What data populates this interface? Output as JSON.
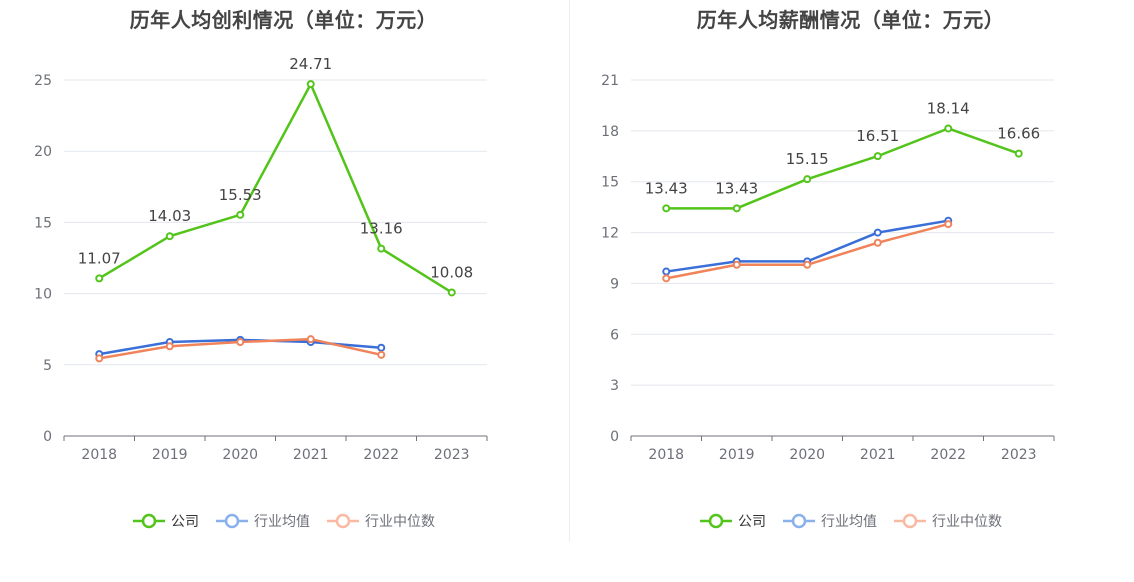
{
  "chart_data": [
    {
      "type": "line",
      "title": "历年人均创利情况（单位：万元）",
      "categories": [
        "2018",
        "2019",
        "2020",
        "2021",
        "2022",
        "2023"
      ],
      "ylim": [
        0,
        25
      ],
      "yticks": [
        "0",
        "5",
        "10",
        "15",
        "20",
        "25"
      ],
      "grid": true,
      "legend_position": "bottom",
      "series": [
        {
          "name": "公司",
          "color": "#52c41a",
          "values": [
            11.07,
            14.03,
            15.53,
            24.71,
            13.16,
            10.08
          ],
          "labels": [
            "11.07",
            "14.03",
            "15.53",
            "24.71",
            "13.16",
            "10.08"
          ]
        },
        {
          "name": "行业均值",
          "color": "#3a6fd8",
          "values": [
            5.75,
            6.6,
            6.75,
            6.6,
            6.2,
            null
          ]
        },
        {
          "name": "行业中位数",
          "color": "#f0835a",
          "values": [
            5.45,
            6.3,
            6.6,
            6.8,
            5.7,
            null
          ]
        }
      ]
    },
    {
      "type": "line",
      "title": "历年人均薪酬情况（单位：万元）",
      "categories": [
        "2018",
        "2019",
        "2020",
        "2021",
        "2022",
        "2023"
      ],
      "ylim": [
        0,
        21
      ],
      "yticks": [
        "0",
        "3",
        "6",
        "9",
        "12",
        "15",
        "18",
        "21"
      ],
      "grid": true,
      "legend_position": "bottom",
      "series": [
        {
          "name": "公司",
          "color": "#52c41a",
          "values": [
            13.43,
            13.43,
            15.15,
            16.51,
            18.14,
            16.66
          ],
          "labels": [
            "13.43",
            "13.43",
            "15.15",
            "16.51",
            "18.14",
            "16.66"
          ]
        },
        {
          "name": "行业均值",
          "color": "#3a6fd8",
          "values": [
            9.7,
            10.3,
            10.3,
            12.0,
            12.7,
            null
          ]
        },
        {
          "name": "行业中位数",
          "color": "#f0835a",
          "values": [
            9.3,
            10.1,
            10.1,
            11.4,
            12.5,
            null
          ]
        }
      ]
    }
  ],
  "legend": {
    "colors": [
      "#52c41a",
      "#8ab1ec",
      "#f9b9a2"
    ]
  }
}
